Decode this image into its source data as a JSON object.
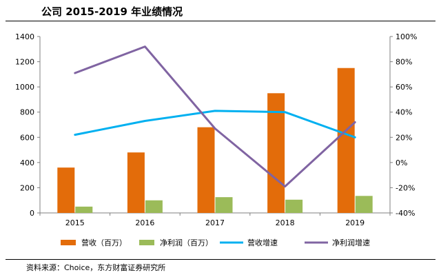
{
  "page": {
    "title": "公司 2015-2019 年业绩情况",
    "source": "资料来源：Choice，东方财富证券研究所"
  },
  "chart_data": {
    "type": "bar",
    "categories": [
      "2015",
      "2016",
      "2017",
      "2018",
      "2019"
    ],
    "ylim": [
      0,
      1400
    ],
    "yticks": [
      "0",
      "200",
      "400",
      "600",
      "800",
      "1000",
      "1200",
      "1400"
    ],
    "y2lim": [
      -40,
      100
    ],
    "y2ticks": [
      "-40%",
      "-20%",
      "0%",
      "20%",
      "40%",
      "60%",
      "80%",
      "100%"
    ],
    "series": [
      {
        "name": "营收（百万）",
        "kind": "bar",
        "axis": "left",
        "color": "#E36C0A",
        "values": [
          360,
          480,
          680,
          950,
          1150
        ]
      },
      {
        "name": "净利润（百万）",
        "kind": "bar",
        "axis": "left",
        "color": "#9BBB59",
        "values": [
          50,
          100,
          125,
          105,
          135
        ]
      },
      {
        "name": "营收增速",
        "kind": "line",
        "axis": "right",
        "color": "#00B0F0",
        "values": [
          22,
          33,
          41,
          40,
          20
        ]
      },
      {
        "name": "净利润增速",
        "kind": "line",
        "axis": "right",
        "color": "#8064A2",
        "values": [
          71,
          92,
          27,
          -19,
          32
        ]
      }
    ],
    "legend_position": "bottom",
    "grid": false
  }
}
